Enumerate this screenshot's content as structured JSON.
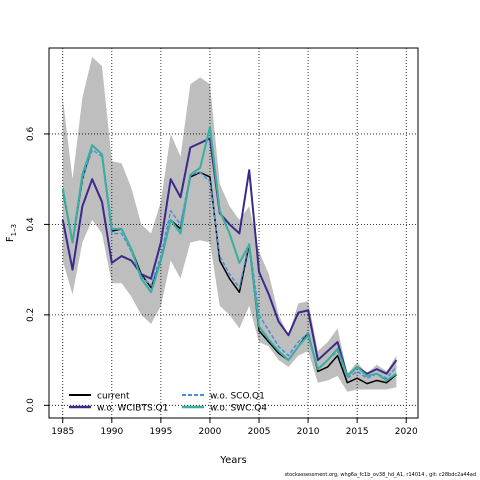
{
  "chart_data": {
    "type": "line",
    "xlabel": "Years",
    "ylabel": "F",
    "ylabel_sub": "1–3",
    "xlim": [
      1983.6,
      2021.2
    ],
    "ylim": [
      -0.028,
      0.79
    ],
    "xticks": [
      1985,
      1990,
      1995,
      2000,
      2005,
      2010,
      2015,
      2020
    ],
    "yticks": [
      0.0,
      0.2,
      0.4,
      0.6
    ],
    "ytick_labels": [
      "0.0",
      "0.2",
      "0.4",
      "0.6"
    ],
    "grid": true,
    "legend_position": "bottom-left",
    "x": [
      1985,
      1986,
      1987,
      1988,
      1989,
      1990,
      1991,
      1992,
      1993,
      1994,
      1995,
      1996,
      1997,
      1998,
      1999,
      2000,
      2001,
      2002,
      2003,
      2004,
      2005,
      2006,
      2007,
      2008,
      2009,
      2010,
      2011,
      2012,
      2013,
      2014,
      2015,
      2016,
      2017,
      2018,
      2019
    ],
    "band": {
      "lower": [
        0.32,
        0.245,
        0.36,
        0.41,
        0.38,
        0.27,
        0.27,
        0.24,
        0.2,
        0.18,
        0.22,
        0.32,
        0.28,
        0.36,
        0.365,
        0.36,
        0.22,
        0.2,
        0.17,
        0.22,
        0.14,
        0.13,
        0.1,
        0.085,
        0.11,
        0.12,
        0.05,
        0.055,
        0.065,
        0.03,
        0.035,
        0.035,
        0.035,
        0.035,
        0.04
      ],
      "upper": [
        0.68,
        0.5,
        0.68,
        0.77,
        0.75,
        0.54,
        0.535,
        0.48,
        0.4,
        0.38,
        0.45,
        0.6,
        0.55,
        0.71,
        0.725,
        0.71,
        0.49,
        0.44,
        0.41,
        0.44,
        0.34,
        0.29,
        0.2,
        0.155,
        0.225,
        0.23,
        0.12,
        0.14,
        0.17,
        0.07,
        0.095,
        0.07,
        0.09,
        0.075,
        0.11
      ]
    },
    "series": [
      {
        "name": "current",
        "color": "#000000",
        "dash": "solid",
        "width": 1.5,
        "values": [
          0.475,
          0.36,
          0.5,
          0.575,
          0.555,
          0.385,
          0.39,
          0.345,
          0.29,
          0.26,
          0.32,
          0.41,
          0.39,
          0.505,
          0.515,
          0.505,
          0.32,
          0.28,
          0.25,
          0.355,
          0.165,
          0.14,
          0.115,
          0.1,
          0.13,
          0.16,
          0.075,
          0.085,
          0.11,
          0.05,
          0.06,
          0.048,
          0.055,
          0.05,
          0.068
        ]
      },
      {
        "name": "w.o. WCIBTS.Q1",
        "color": "#3b2a8a",
        "dash": "solid",
        "width": 2,
        "values": [
          0.41,
          0.3,
          0.44,
          0.5,
          0.45,
          0.315,
          0.33,
          0.32,
          0.29,
          0.28,
          0.36,
          0.5,
          0.46,
          0.57,
          0.58,
          0.59,
          0.425,
          0.4,
          0.38,
          0.52,
          0.295,
          0.245,
          0.185,
          0.155,
          0.205,
          0.21,
          0.1,
          0.12,
          0.14,
          0.065,
          0.085,
          0.07,
          0.08,
          0.07,
          0.1
        ]
      },
      {
        "name": "w.o. SCO.Q1",
        "color": "#4a8fd6",
        "dash": "4,2",
        "width": 1.5,
        "values": [
          0.475,
          0.36,
          0.5,
          0.565,
          0.55,
          0.38,
          0.38,
          0.34,
          0.285,
          0.265,
          0.33,
          0.43,
          0.4,
          0.51,
          0.515,
          0.495,
          0.33,
          0.29,
          0.26,
          0.36,
          0.2,
          0.165,
          0.13,
          0.11,
          0.14,
          0.16,
          0.08,
          0.1,
          0.12,
          0.06,
          0.075,
          0.06,
          0.07,
          0.06,
          0.085
        ]
      },
      {
        "name": "w.o. SWC.Q4",
        "color": "#3aaea0",
        "dash": "solid",
        "width": 2,
        "values": [
          0.48,
          0.36,
          0.51,
          0.575,
          0.555,
          0.39,
          0.39,
          0.345,
          0.28,
          0.25,
          0.32,
          0.41,
          0.38,
          0.51,
          0.525,
          0.615,
          0.43,
          0.38,
          0.315,
          0.355,
          0.175,
          0.145,
          0.12,
          0.1,
          0.13,
          0.155,
          0.08,
          0.1,
          0.125,
          0.065,
          0.085,
          0.065,
          0.07,
          0.055,
          0.07
        ]
      }
    ],
    "band_color": "#bebebe"
  },
  "footer": "stockassessment.org, whg6a_fc1b_ov38_hd_A1, r14014 , git: c28bdc2a44ad"
}
